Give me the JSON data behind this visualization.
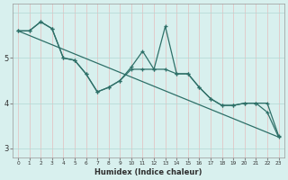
{
  "xlabel": "Humidex (Indice chaleur)",
  "bg_color": "#d8f0ee",
  "line_color": "#2e7068",
  "grid_color": "#b0d8d4",
  "x": [
    0,
    1,
    2,
    3,
    4,
    5,
    6,
    7,
    8,
    9,
    10,
    11,
    12,
    13,
    14,
    15,
    16,
    17,
    18,
    19,
    20,
    21,
    22,
    23
  ],
  "line_jagged": [
    5.6,
    5.6,
    5.8,
    5.65,
    5.0,
    4.95,
    4.65,
    4.25,
    4.35,
    4.5,
    4.8,
    5.15,
    4.75,
    5.7,
    4.65,
    4.65,
    4.35,
    4.1,
    3.95,
    3.95,
    4.0,
    4.0,
    3.8,
    3.25
  ],
  "line_smooth": [
    5.6,
    5.6,
    5.8,
    5.65,
    5.0,
    4.95,
    4.65,
    4.25,
    4.35,
    4.5,
    4.75,
    4.75,
    4.75,
    4.75,
    4.65,
    4.65,
    4.35,
    4.1,
    3.95,
    3.95,
    4.0,
    4.0,
    4.0,
    3.28
  ],
  "trend_x": [
    0,
    23
  ],
  "trend_y": [
    5.6,
    3.25
  ],
  "ylim": [
    2.8,
    6.2
  ],
  "xlim": [
    -0.5,
    23.5
  ]
}
